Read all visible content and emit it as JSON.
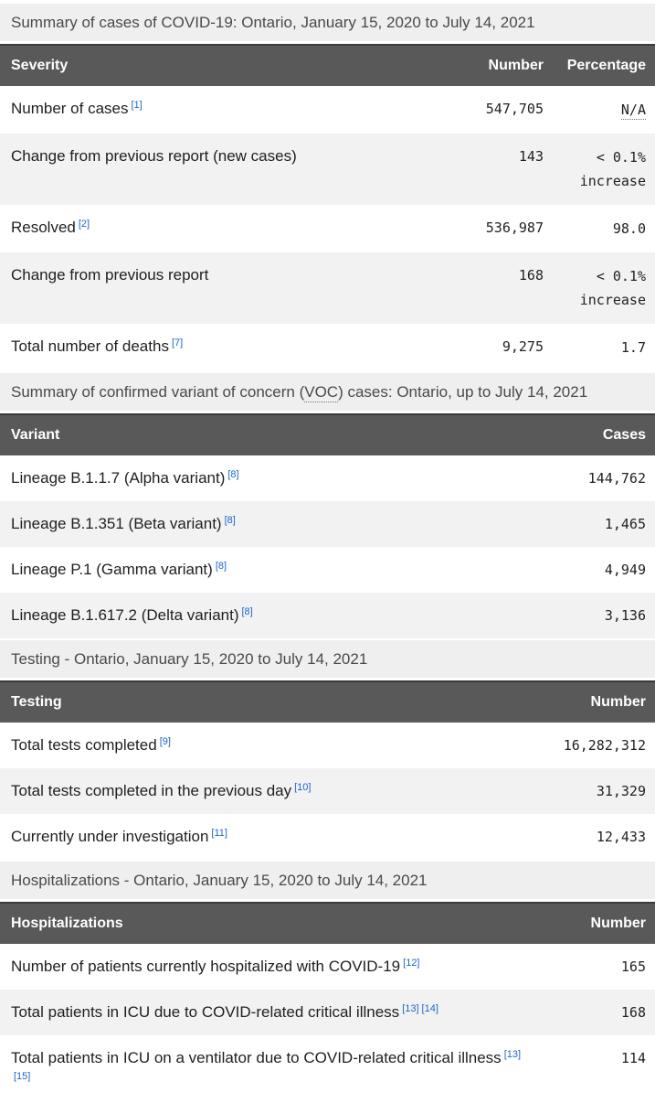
{
  "colors": {
    "header_bg": "#595959",
    "header_text": "#ffffff",
    "caption_bg": "#efefef",
    "zebra_row_bg": "#f2f2f2",
    "link_blue": "#1a66cc",
    "body_text": "#1f1f1f"
  },
  "tables": [
    {
      "caption": "Summary of cases of COVID-19: Ontario, January 15, 2020 to July 14, 2021",
      "columns": [
        "Severity",
        "Number",
        "Percentage"
      ],
      "rows": [
        {
          "label": "Number of cases",
          "footnotes": [
            "[1]"
          ],
          "number": "547,705",
          "percentage": "N/A",
          "percentage_abbr": true
        },
        {
          "label": "Change from previous report (new cases)",
          "footnotes": [],
          "number": "143",
          "percentage": "< 0.1% increase"
        },
        {
          "label": "Resolved",
          "footnotes": [
            "[2]"
          ],
          "number": "536,987",
          "percentage": "98.0"
        },
        {
          "label": "Change from previous report",
          "footnotes": [],
          "number": "168",
          "percentage": "< 0.1% increase"
        },
        {
          "label": "Total number of deaths",
          "footnotes": [
            "[7]"
          ],
          "number": "9,275",
          "percentage": "1.7"
        }
      ]
    },
    {
      "caption": "Summary of confirmed variant of concern (VOC) cases: Ontario, up to July 14, 2021",
      "caption_abbr": "VOC",
      "columns": [
        "Variant",
        "Cases"
      ],
      "rows": [
        {
          "label": "Lineage B.1.1.7 (Alpha variant)",
          "footnotes": [
            "[8]"
          ],
          "number": "144,762"
        },
        {
          "label": "Lineage B.1.351 (Beta variant)",
          "footnotes": [
            "[8]"
          ],
          "number": "1,465"
        },
        {
          "label": "Lineage P.1 (Gamma variant)",
          "footnotes": [
            "[8]"
          ],
          "number": "4,949"
        },
        {
          "label": "Lineage B.1.617.2 (Delta variant)",
          "footnotes": [
            "[8]"
          ],
          "number": "3,136"
        }
      ]
    },
    {
      "caption": "Testing - Ontario, January 15, 2020 to July 14, 2021",
      "columns": [
        "Testing",
        "Number"
      ],
      "rows": [
        {
          "label": "Total tests completed",
          "footnotes": [
            "[9]"
          ],
          "number": "16,282,312"
        },
        {
          "label": "Total tests completed in the previous day",
          "footnotes": [
            "[10]"
          ],
          "number": "31,329"
        },
        {
          "label": "Currently under investigation",
          "footnotes": [
            "[11]"
          ],
          "number": "12,433"
        }
      ]
    },
    {
      "caption": "Hospitalizations - Ontario, January 15, 2020 to July 14, 2021",
      "columns": [
        "Hospitalizations",
        "Number"
      ],
      "rows": [
        {
          "label": "Number of patients currently hospitalized with COVID-19",
          "footnotes": [
            "[12]"
          ],
          "number": "165"
        },
        {
          "label": "Total patients in ICU due to COVID-related critical illness",
          "footnotes": [
            "[13]",
            "[14]"
          ],
          "number": "168"
        },
        {
          "label": "Total patients in ICU on a ventilator due to COVID-related critical illness",
          "footnotes": [
            "[13]",
            "[15]"
          ],
          "number": "114"
        }
      ]
    }
  ]
}
